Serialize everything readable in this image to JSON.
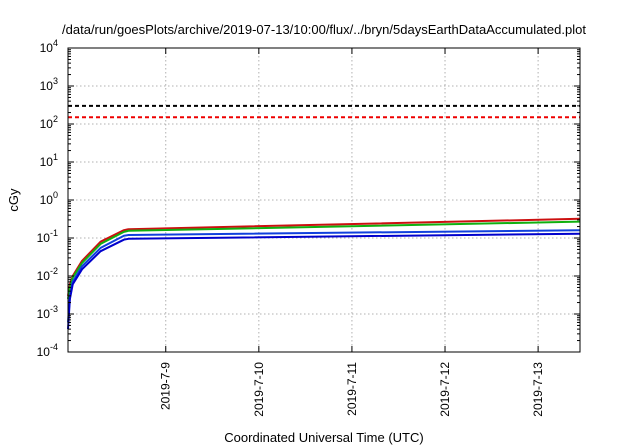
{
  "chart_data": {
    "type": "line",
    "title": "/data/run/goesPlots/archive/2019-07-13/10:00/flux/../bryn/5daysEarthDataAccumulated.plot",
    "xlabel": "Coordinated Universal Time (UTC)",
    "ylabel": "cGy",
    "yscale": "log",
    "ylim_exp": [
      -4,
      4
    ],
    "ytick_exponents": [
      "-4",
      "-3",
      "-2",
      "-1",
      "0",
      "1",
      "2",
      "3",
      "4"
    ],
    "ytick_base": "10",
    "xlim_days": [
      7.95,
      13.45
    ],
    "xticks": [
      {
        "label": "2019-7-9",
        "day": 9
      },
      {
        "label": "2019-7-10",
        "day": 10
      },
      {
        "label": "2019-7-11",
        "day": 11
      },
      {
        "label": "2019-7-12",
        "day": 12
      },
      {
        "label": "2019-7-13",
        "day": 13
      }
    ],
    "grid": true,
    "thresholds": [
      {
        "value": 300,
        "color": "#000000",
        "style": "dashed"
      },
      {
        "value": 150,
        "color": "#ee0000",
        "style": "dashed"
      }
    ],
    "series": [
      {
        "color": "#cc1010",
        "x": [
          7.95,
          7.97,
          8.0,
          8.1,
          8.3,
          8.55,
          8.6,
          13.45
        ],
        "y": [
          0.003,
          0.006,
          0.01,
          0.025,
          0.08,
          0.16,
          0.17,
          0.32
        ]
      },
      {
        "color": "#10b010",
        "x": [
          7.95,
          7.97,
          8.0,
          8.1,
          8.3,
          8.55,
          8.6,
          13.45
        ],
        "y": [
          0.0025,
          0.005,
          0.009,
          0.022,
          0.07,
          0.145,
          0.155,
          0.27
        ]
      },
      {
        "color": "#1040dd",
        "x": [
          7.95,
          7.97,
          8.0,
          8.1,
          8.3,
          8.55,
          8.6,
          13.45
        ],
        "y": [
          0.0006,
          0.003,
          0.007,
          0.018,
          0.055,
          0.115,
          0.12,
          0.16
        ]
      },
      {
        "color": "#0000cc",
        "x": [
          7.95,
          7.97,
          8.0,
          8.1,
          8.3,
          8.55,
          8.6,
          13.45
        ],
        "y": [
          0.0004,
          0.0025,
          0.006,
          0.015,
          0.045,
          0.09,
          0.095,
          0.13
        ]
      }
    ]
  }
}
